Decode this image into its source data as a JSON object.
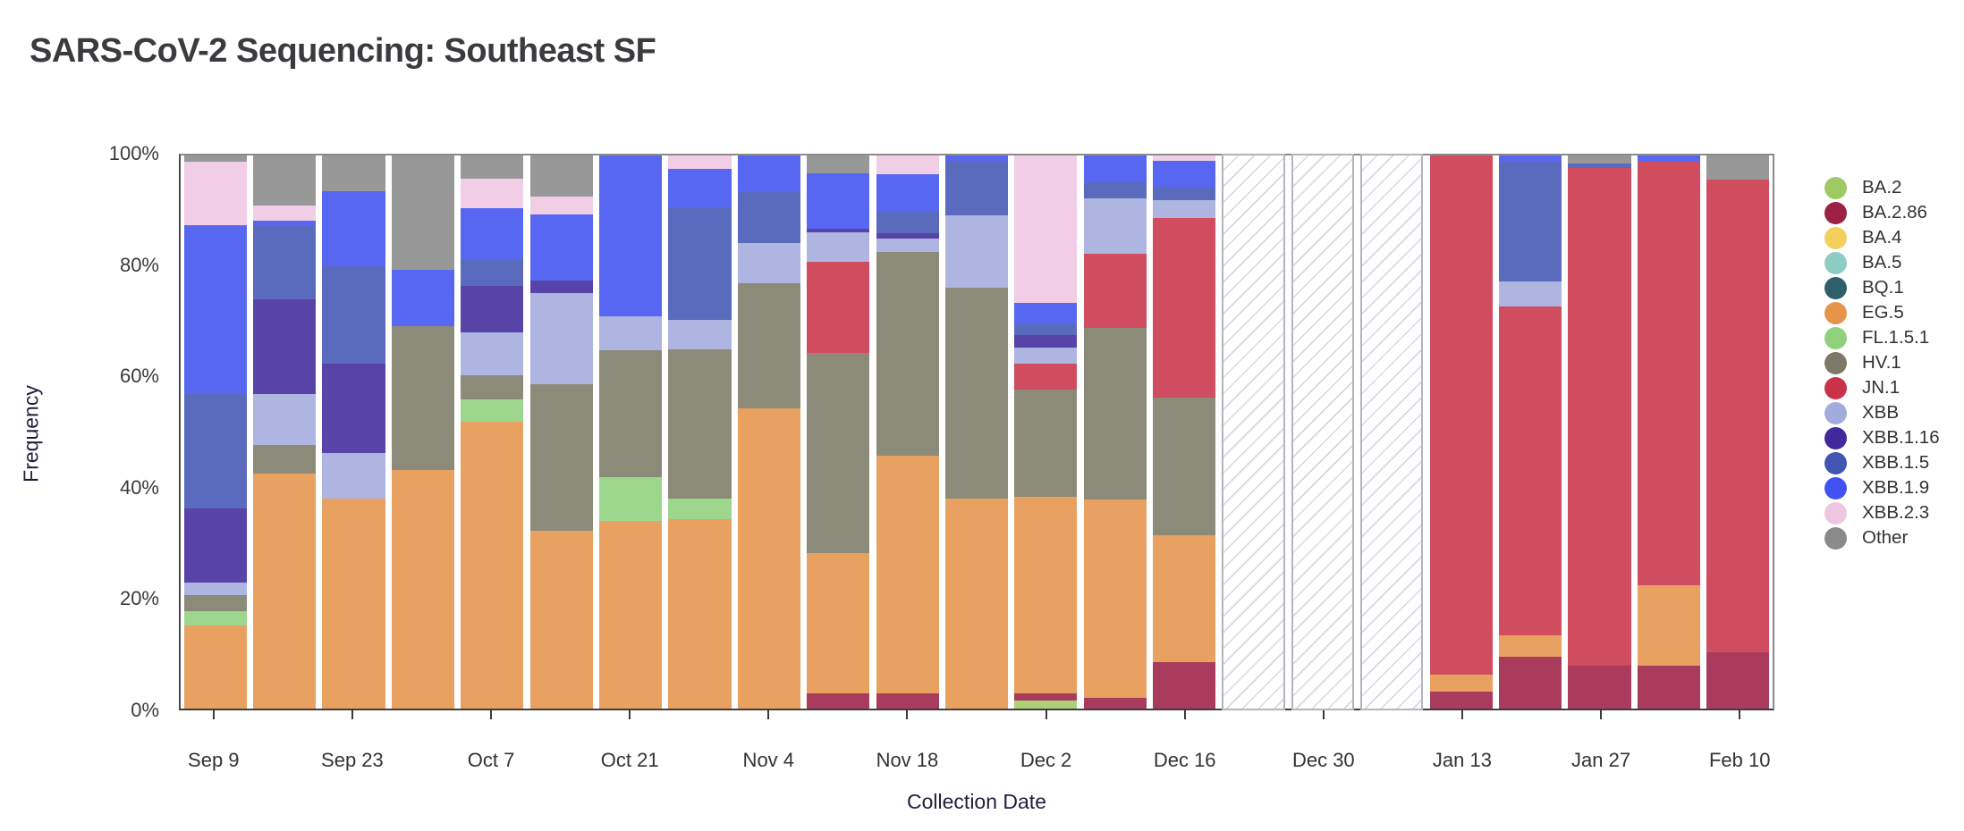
{
  "page": {
    "title": "SARS-CoV-2 Sequencing: Southeast SF"
  },
  "chart_data": {
    "type": "bar",
    "stacked": true,
    "title": "SARS-CoV-2 Sequencing: Southeast SF",
    "xlabel": "Collection Date",
    "ylabel": "Frequency",
    "ylim": [
      0,
      100
    ],
    "grid": false,
    "legend_position": "right",
    "y_tick_values": [
      0,
      20,
      40,
      60,
      80,
      100
    ],
    "y_tick_labels": [
      "0%",
      "20%",
      "40%",
      "60%",
      "80%",
      "100%"
    ],
    "categories": [
      "Sep 9",
      "Sep 16",
      "Sep 23",
      "Sep 30",
      "Oct 7",
      "Oct 14",
      "Oct 21",
      "Oct 28",
      "Nov 4",
      "Nov 11",
      "Nov 18",
      "Nov 25",
      "Dec 2",
      "Dec 9",
      "Dec 16",
      "Dec 23",
      "Dec 30",
      "Jan 6",
      "Jan 13",
      "Jan 20",
      "Jan 27",
      "Feb 3",
      "Feb 10"
    ],
    "x_tick_indices": [
      0,
      2,
      4,
      6,
      8,
      10,
      12,
      14,
      16,
      18,
      20,
      22
    ],
    "x_tick_labels": [
      "Sep 9",
      "Sep 23",
      "Oct 7",
      "Oct 21",
      "Nov 4",
      "Nov 18",
      "Dec 2",
      "Dec 16",
      "Dec 30",
      "Jan 13",
      "Jan 27",
      "Feb 10"
    ],
    "no_data_indices": [
      15,
      16,
      17
    ],
    "no_data_style": "diagonal-hatch",
    "series": [
      {
        "name": "BA.2",
        "color": "#9fc963",
        "values": [
          0,
          0,
          0,
          0,
          0,
          0,
          0,
          0,
          0,
          0,
          0,
          0,
          1.4,
          0,
          0,
          0,
          0,
          0,
          0,
          0,
          0,
          0,
          0
        ]
      },
      {
        "name": "BA.2.86",
        "color": "#9d2045",
        "values": [
          0,
          0,
          0,
          0,
          0,
          0,
          0,
          0,
          0,
          2.7,
          2.7,
          0,
          1.4,
          1.9,
          8.4,
          0,
          0,
          0,
          3.1,
          9.4,
          7.7,
          7.7,
          10.1
        ]
      },
      {
        "name": "BA.4",
        "color": "#f3cf5d",
        "values": [
          0,
          0,
          0,
          0,
          0,
          0,
          0,
          0,
          0,
          0,
          0,
          0,
          0,
          0,
          0,
          0,
          0,
          0,
          0,
          0,
          0,
          0,
          0
        ]
      },
      {
        "name": "BA.5",
        "color": "#8ecdc3",
        "values": [
          0,
          0,
          0,
          0,
          0,
          0,
          0,
          0,
          0,
          0,
          0,
          0,
          0,
          0,
          0,
          0,
          0,
          0,
          0,
          0,
          0,
          0,
          0
        ]
      },
      {
        "name": "BQ.1",
        "color": "#2e5f6b",
        "values": [
          0,
          0,
          0,
          0,
          0,
          0,
          0,
          0,
          0,
          0,
          0,
          0,
          0,
          0,
          0,
          0,
          0,
          0,
          0,
          0,
          0,
          0,
          0
        ]
      },
      {
        "name": "EG.5",
        "color": "#e6944c",
        "values": [
          15.1,
          42.5,
          38,
          43.1,
          51.9,
          32.1,
          33.9,
          34.3,
          54.3,
          25.4,
          43.1,
          37.9,
          35.5,
          35.9,
          23,
          0,
          0,
          0,
          3.1,
          3.8,
          0,
          14.6,
          0
        ]
      },
      {
        "name": "FL.1.5.1",
        "color": "#90d17d",
        "values": [
          2.5,
          0,
          0,
          0,
          4,
          0,
          7.9,
          3.6,
          0,
          0,
          0,
          0,
          0,
          0,
          0,
          0,
          0,
          0,
          0,
          0,
          0,
          0,
          0
        ]
      },
      {
        "name": "HV.1",
        "color": "#7c7a67",
        "values": [
          3,
          5.1,
          0,
          26,
          4.3,
          26.6,
          23,
          27,
          22.6,
          36.2,
          36.7,
          38.2,
          19.4,
          31.1,
          24.8,
          0,
          0,
          0,
          0,
          0,
          0,
          0,
          0
        ]
      },
      {
        "name": "JN.1",
        "color": "#c93349",
        "values": [
          0,
          0,
          0,
          0,
          0,
          0,
          0,
          0,
          0,
          16.5,
          0,
          0,
          4.7,
          13.3,
          32.5,
          0,
          0,
          0,
          93.8,
          59.5,
          90.1,
          76.5,
          85.6
        ]
      },
      {
        "name": "XBB",
        "color": "#a3abdc",
        "values": [
          2.2,
          9.3,
          8.2,
          0,
          7.9,
          16.5,
          6.1,
          5.4,
          7.2,
          5.3,
          2.5,
          13,
          2.9,
          10.1,
          3.2,
          0,
          0,
          0,
          0,
          4.5,
          0,
          0,
          0
        ]
      },
      {
        "name": "XBB.1.16",
        "color": "#41299c",
        "values": [
          13.4,
          17.1,
          16.2,
          0,
          8.3,
          2.2,
          0,
          0,
          0,
          0.7,
          1,
          0,
          2.2,
          0,
          0,
          0,
          0,
          0,
          0,
          0,
          0,
          0,
          0
        ]
      },
      {
        "name": "XBB.1.5",
        "color": "#4355b3",
        "values": [
          20.6,
          13.2,
          17.6,
          0,
          4.7,
          0,
          0,
          20.1,
          9.3,
          0,
          3.8,
          10,
          2.2,
          2.9,
          2.5,
          0,
          0,
          0,
          0,
          21.6,
          0.7,
          0,
          0
        ]
      },
      {
        "name": "XBB.1.9",
        "color": "#4152f0",
        "values": [
          30.6,
          1,
          13.6,
          10.3,
          9.3,
          11.9,
          29.1,
          7.2,
          6.6,
          10,
          6.8,
          0.9,
          3.6,
          4.8,
          4.7,
          0,
          0,
          0,
          0,
          1.2,
          0,
          1.2,
          0
        ]
      },
      {
        "name": "XBB.2.3",
        "color": "#efc6e2",
        "values": [
          11.4,
          2.8,
          0,
          0,
          5.4,
          3.2,
          0,
          2.4,
          0,
          0,
          3.4,
          0,
          26.7,
          0,
          0.9,
          0,
          0,
          0,
          0,
          0,
          0,
          0,
          0
        ]
      },
      {
        "name": "Other",
        "color": "#8a8a8a",
        "values": [
          1.2,
          9,
          6.4,
          20.6,
          4.2,
          7.5,
          0,
          0,
          0,
          3.2,
          0,
          0,
          0,
          0,
          0,
          0,
          0,
          0,
          0,
          0,
          1.5,
          0,
          4.3
        ]
      }
    ]
  }
}
